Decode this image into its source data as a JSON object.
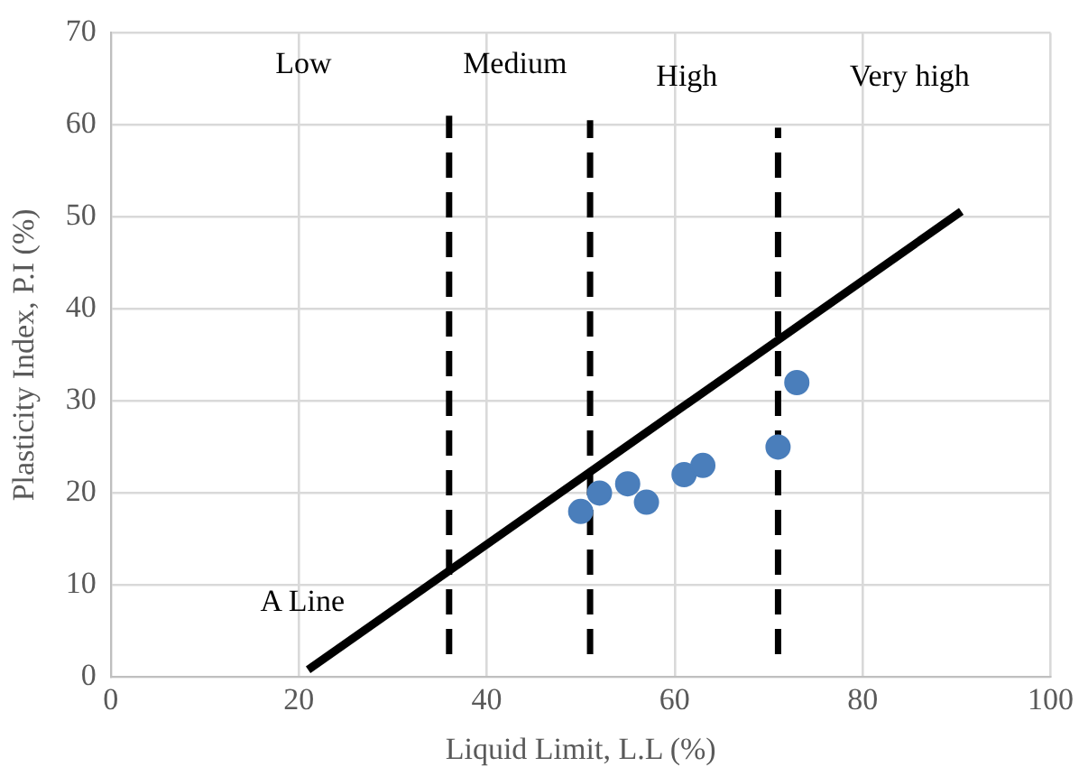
{
  "chart_data": {
    "type": "scatter",
    "xlabel": "Liquid Limit, L.L (%)",
    "ylabel": "Plasticity Index, P.I (%)",
    "xlim": [
      0,
      100
    ],
    "xticks": [
      0,
      20,
      40,
      60,
      80,
      100
    ],
    "ylim": [
      0,
      70
    ],
    "yticks": [
      0,
      10,
      20,
      30,
      40,
      50,
      60,
      70
    ],
    "grid": true,
    "legend": false,
    "series": [
      {
        "color": "#4a7ebb",
        "marker": "circle",
        "x": [
          50,
          52,
          55,
          57,
          61,
          63,
          71,
          73
        ],
        "values": [
          18,
          20,
          21,
          19,
          22,
          23,
          25,
          32
        ]
      },
      {
        "type": "line",
        "color": "#000000",
        "marker": "none",
        "line_style": "solid",
        "x": [
          21,
          90.5
        ],
        "values": [
          0.8,
          50.6
        ]
      },
      {
        "type": "line",
        "color": "#000000",
        "marker": "none",
        "line_style": "dashed",
        "x": [
          36,
          36
        ],
        "values": [
          2.5,
          61
        ]
      },
      {
        "type": "line",
        "color": "#000000",
        "marker": "none",
        "line_style": "dashed",
        "x": [
          51,
          51
        ],
        "values": [
          2.5,
          60.5
        ]
      },
      {
        "type": "line",
        "color": "#000000",
        "marker": "none",
        "line_style": "dashed",
        "x": [
          71,
          71
        ],
        "values": [
          2.5,
          59.7
        ]
      }
    ],
    "annotations": [
      "Low",
      "Medium",
      "High",
      "Very high",
      "A Line"
    ]
  }
}
